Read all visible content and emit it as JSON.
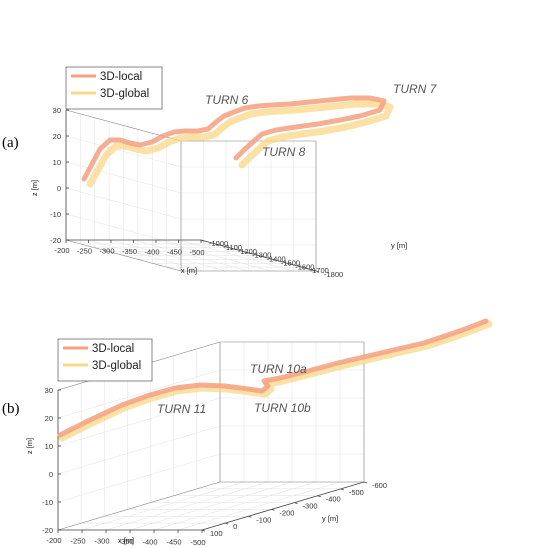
{
  "chart_data": [
    {
      "panel": "(a)",
      "type": "line",
      "xlabel": "x [m]",
      "ylabel": "y [m]",
      "zlabel": "z [m]",
      "x_ticks": [
        "-200",
        "-250",
        "-300",
        "-350",
        "-400",
        "-450",
        "-500"
      ],
      "y_ticks": [
        "-1000",
        "-1100",
        "-1200",
        "-1300",
        "-1400",
        "-1500",
        "-1600",
        "-1700",
        "-1800"
      ],
      "z_ticks": [
        "-20",
        "-10",
        "0",
        "10",
        "20",
        "30"
      ],
      "legend": [
        "3D-local",
        "3D-global"
      ],
      "annotations": [
        "TURN 6",
        "TURN 7",
        "TURN 8"
      ],
      "series": [
        {
          "name": "3D-local",
          "color": "#f4a07f"
        },
        {
          "name": "3D-global",
          "color": "#fbd78a"
        }
      ]
    },
    {
      "panel": "(b)",
      "type": "line",
      "xlabel": "x [m]",
      "ylabel": "y [m]",
      "zlabel": "z [m]",
      "x_ticks": [
        "-200",
        "-250",
        "-300",
        "-350",
        "-400",
        "-450",
        "-500"
      ],
      "y_ticks": [
        "100",
        "0",
        "-100",
        "-200",
        "-300",
        "-400",
        "-500",
        "-600"
      ],
      "z_ticks": [
        "-20",
        "-10",
        "0",
        "10",
        "20",
        "30"
      ],
      "legend": [
        "3D-local",
        "3D-global"
      ],
      "annotations": [
        "TURN 10a",
        "TURN 11",
        "TURN 10b"
      ],
      "series": [
        {
          "name": "3D-local",
          "color": "#f4a07f"
        },
        {
          "name": "3D-global",
          "color": "#fbd78a"
        }
      ]
    }
  ]
}
